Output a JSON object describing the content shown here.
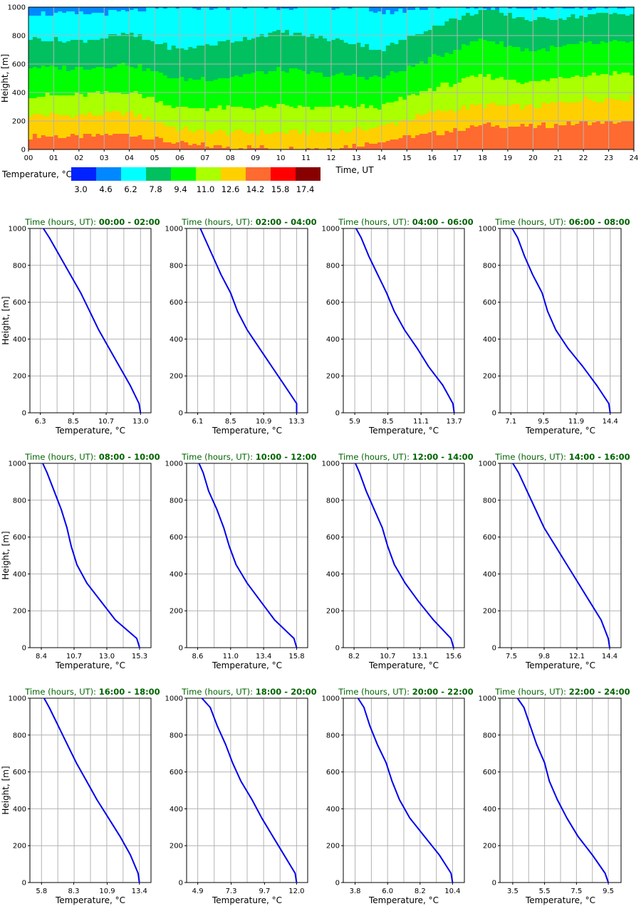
{
  "chart_data": [
    {
      "type": "heatmap",
      "xlabel": "Time, UT",
      "ylabel": "Height, [m]",
      "x_ticks": [
        "00",
        "01",
        "02",
        "03",
        "04",
        "05",
        "06",
        "07",
        "08",
        "09",
        "10",
        "11",
        "12",
        "13",
        "14",
        "15",
        "16",
        "17",
        "18",
        "19",
        "20",
        "21",
        "22",
        "23",
        "24"
      ],
      "y_ticks": [
        "0",
        "200",
        "400",
        "600",
        "800",
        "1000"
      ],
      "xlim": [
        0,
        24
      ],
      "ylim": [
        0,
        1000
      ],
      "grid": true,
      "legend": {
        "title": "Temperature, °C",
        "placement": "bottom-left",
        "values": [
          "3.0",
          "4.6",
          "6.2",
          "7.8",
          "9.4",
          "11.0",
          "12.6",
          "14.2",
          "15.8",
          "17.4"
        ],
        "colors": [
          "#0022ff",
          "#0088ff",
          "#00ffff",
          "#00c060",
          "#00ff00",
          "#aaff00",
          "#ffd000",
          "#ff6a30",
          "#ff0000",
          "#880000"
        ]
      },
      "band_edges": [
        {
          "time": 0,
          "edges": [
            95,
            245,
            380,
            580,
            780,
            960
          ]
        },
        {
          "time": 2,
          "edges": [
            90,
            240,
            380,
            570,
            760,
            950
          ]
        },
        {
          "time": 4,
          "edges": [
            110,
            260,
            410,
            600,
            810,
            970
          ]
        },
        {
          "time": 6,
          "edges": [
            40,
            140,
            290,
            490,
            700,
            1000
          ]
        },
        {
          "time": 8,
          "edges": [
            15,
            120,
            290,
            510,
            760,
            1000
          ]
        },
        {
          "time": 10,
          "edges": [
            10,
            120,
            300,
            560,
            830,
            1000
          ]
        },
        {
          "time": 12,
          "edges": [
            10,
            120,
            290,
            520,
            770,
            1000
          ]
        },
        {
          "time": 13,
          "edges": [
            30,
            140,
            300,
            520,
            750,
            1000
          ]
        },
        {
          "time": 14,
          "edges": [
            60,
            160,
            300,
            500,
            700,
            960
          ]
        },
        {
          "time": 16,
          "edges": [
            110,
            260,
            430,
            640,
            860,
            1000
          ]
        },
        {
          "time": 18,
          "edges": [
            170,
            310,
            520,
            780,
            980,
            1000
          ]
        },
        {
          "time": 20,
          "edges": [
            160,
            300,
            470,
            690,
            910,
            1000
          ]
        },
        {
          "time": 22,
          "edges": [
            190,
            350,
            530,
            740,
            940,
            1000
          ]
        },
        {
          "time": 24,
          "edges": [
            190,
            360,
            540,
            760,
            960,
            1000
          ]
        }
      ],
      "band_order_warm_to_cold": [
        7,
        6,
        5,
        4,
        3,
        2,
        1
      ]
    },
    {
      "type": "line",
      "title_prefix": "Time (hours, UT): ",
      "title_range": "00:00 - 02:00",
      "xlabel": "Temperature, °C",
      "ylabel": "Height, [m]",
      "x_ticks": [
        "6.3",
        "8.5",
        "10.7",
        "13.0"
      ],
      "xlim": [
        5.6,
        13.7
      ],
      "ylim": [
        0,
        1000
      ],
      "grid": true,
      "series": [
        {
          "values": [
            [
              13.0,
              0
            ],
            [
              12.9,
              50
            ],
            [
              12.3,
              150
            ],
            [
              11.6,
              250
            ],
            [
              10.9,
              350
            ],
            [
              10.2,
              450
            ],
            [
              9.6,
              550
            ],
            [
              9.0,
              650
            ],
            [
              8.3,
              750
            ],
            [
              7.6,
              850
            ],
            [
              6.9,
              950
            ],
            [
              6.5,
              1000
            ]
          ]
        }
      ]
    },
    {
      "type": "line",
      "title_prefix": "Time (hours, UT): ",
      "title_range": "02:00 - 04:00",
      "xlabel": "Temperature, °C",
      "ylabel": "",
      "x_ticks": [
        "6.1",
        "8.5",
        "10.9",
        "13.3"
      ],
      "xlim": [
        5.3,
        14.1
      ],
      "ylim": [
        0,
        1000
      ],
      "grid": true,
      "series": [
        {
          "values": [
            [
              13.3,
              0
            ],
            [
              13.3,
              50
            ],
            [
              12.4,
              150
            ],
            [
              11.5,
              250
            ],
            [
              10.6,
              350
            ],
            [
              9.7,
              450
            ],
            [
              9.0,
              550
            ],
            [
              8.5,
              650
            ],
            [
              7.8,
              750
            ],
            [
              7.2,
              850
            ],
            [
              6.6,
              950
            ],
            [
              6.3,
              1000
            ]
          ]
        }
      ]
    },
    {
      "type": "line",
      "title_prefix": "Time (hours, UT): ",
      "title_range": "04:00 - 06:00",
      "xlabel": "Temperature, °C",
      "ylabel": "",
      "x_ticks": [
        "5.9",
        "8.5",
        "11.1",
        "13.7"
      ],
      "xlim": [
        5.0,
        14.5
      ],
      "ylim": [
        0,
        1000
      ],
      "grid": true,
      "series": [
        {
          "values": [
            [
              13.7,
              0
            ],
            [
              13.6,
              50
            ],
            [
              12.8,
              150
            ],
            [
              11.7,
              250
            ],
            [
              10.8,
              350
            ],
            [
              9.8,
              450
            ],
            [
              9.0,
              550
            ],
            [
              8.4,
              650
            ],
            [
              7.7,
              750
            ],
            [
              7.0,
              850
            ],
            [
              6.4,
              950
            ],
            [
              6.0,
              1000
            ]
          ]
        }
      ]
    },
    {
      "type": "line",
      "title_prefix": "Time (hours, UT): ",
      "title_range": "06:00 - 08:00",
      "xlabel": "Temperature, °C",
      "ylabel": "",
      "x_ticks": [
        "7.1",
        "9.5",
        "11.9",
        "14.4"
      ],
      "xlim": [
        6.3,
        15.2
      ],
      "ylim": [
        0,
        1000
      ],
      "grid": true,
      "series": [
        {
          "values": [
            [
              14.4,
              0
            ],
            [
              14.3,
              50
            ],
            [
              13.4,
              150
            ],
            [
              12.4,
              250
            ],
            [
              11.3,
              350
            ],
            [
              10.4,
              450
            ],
            [
              9.8,
              550
            ],
            [
              9.4,
              650
            ],
            [
              8.7,
              750
            ],
            [
              8.1,
              850
            ],
            [
              7.6,
              950
            ],
            [
              7.2,
              1000
            ]
          ]
        }
      ]
    },
    {
      "type": "line",
      "title_prefix": "Time (hours, UT): ",
      "title_range": "08:00 - 10:00",
      "xlabel": "Temperature, °C",
      "ylabel": "Height, [m]",
      "x_ticks": [
        "8.4",
        "10.7",
        "13.0",
        "15.3"
      ],
      "xlim": [
        7.6,
        16.1
      ],
      "ylim": [
        0,
        1000
      ],
      "grid": true,
      "series": [
        {
          "values": [
            [
              15.3,
              0
            ],
            [
              15.1,
              50
            ],
            [
              13.6,
              150
            ],
            [
              12.6,
              250
            ],
            [
              11.6,
              350
            ],
            [
              10.9,
              450
            ],
            [
              10.5,
              550
            ],
            [
              10.2,
              650
            ],
            [
              9.8,
              750
            ],
            [
              9.3,
              850
            ],
            [
              8.8,
              950
            ],
            [
              8.5,
              1000
            ]
          ]
        }
      ]
    },
    {
      "type": "line",
      "title_prefix": "Time (hours, UT): ",
      "title_range": "10:00 - 12:00",
      "xlabel": "Temperature, °C",
      "ylabel": "",
      "x_ticks": [
        "8.6",
        "11.0",
        "13.4",
        "15.8"
      ],
      "xlim": [
        7.8,
        16.6
      ],
      "ylim": [
        0,
        1000
      ],
      "grid": true,
      "series": [
        {
          "values": [
            [
              15.8,
              0
            ],
            [
              15.6,
              50
            ],
            [
              14.2,
              150
            ],
            [
              13.2,
              250
            ],
            [
              12.2,
              350
            ],
            [
              11.4,
              450
            ],
            [
              10.9,
              550
            ],
            [
              10.5,
              650
            ],
            [
              10.0,
              750
            ],
            [
              9.4,
              850
            ],
            [
              9.0,
              950
            ],
            [
              8.7,
              1000
            ]
          ]
        }
      ]
    },
    {
      "type": "line",
      "title_prefix": "Time (hours, UT): ",
      "title_range": "12:00 - 14:00",
      "xlabel": "Temperature, °C",
      "ylabel": "",
      "x_ticks": [
        "8.2",
        "10.7",
        "13.1",
        "15.6"
      ],
      "xlim": [
        7.4,
        16.4
      ],
      "ylim": [
        0,
        1000
      ],
      "grid": true,
      "series": [
        {
          "values": [
            [
              15.6,
              0
            ],
            [
              15.4,
              50
            ],
            [
              14.1,
              150
            ],
            [
              13.0,
              250
            ],
            [
              12.0,
              350
            ],
            [
              11.2,
              450
            ],
            [
              10.7,
              550
            ],
            [
              10.3,
              650
            ],
            [
              9.7,
              750
            ],
            [
              9.1,
              850
            ],
            [
              8.6,
              950
            ],
            [
              8.3,
              1000
            ]
          ]
        }
      ]
    },
    {
      "type": "line",
      "title_prefix": "Time (hours, UT): ",
      "title_range": "14:00 - 16:00",
      "xlabel": "Temperature, °C",
      "ylabel": "",
      "x_ticks": [
        "7.5",
        "9.8",
        "12.1",
        "14.4"
      ],
      "xlim": [
        6.7,
        15.2
      ],
      "ylim": [
        0,
        1000
      ],
      "grid": true,
      "series": [
        {
          "values": [
            [
              14.4,
              0
            ],
            [
              14.3,
              50
            ],
            [
              13.8,
              150
            ],
            [
              13.0,
              250
            ],
            [
              12.2,
              350
            ],
            [
              11.4,
              450
            ],
            [
              10.6,
              550
            ],
            [
              9.8,
              650
            ],
            [
              9.2,
              750
            ],
            [
              8.6,
              850
            ],
            [
              8.0,
              950
            ],
            [
              7.6,
              1000
            ]
          ]
        }
      ]
    },
    {
      "type": "line",
      "title_prefix": "Time (hours, UT): ",
      "title_range": "16:00 - 18:00",
      "xlabel": "Temperature, °C",
      "ylabel": "Height, [m]",
      "x_ticks": [
        "5.8",
        "8.3",
        "10.9",
        "13.4"
      ],
      "xlim": [
        4.9,
        14.3
      ],
      "ylim": [
        0,
        1000
      ],
      "grid": true,
      "series": [
        {
          "values": [
            [
              13.4,
              0
            ],
            [
              13.3,
              50
            ],
            [
              12.7,
              150
            ],
            [
              11.9,
              250
            ],
            [
              11.0,
              350
            ],
            [
              10.1,
              450
            ],
            [
              9.3,
              550
            ],
            [
              8.5,
              650
            ],
            [
              7.8,
              750
            ],
            [
              7.1,
              850
            ],
            [
              6.4,
              950
            ],
            [
              6.0,
              1000
            ]
          ]
        }
      ]
    },
    {
      "type": "line",
      "title_prefix": "Time (hours, UT): ",
      "title_range": "18:00 - 20:00",
      "xlabel": "Temperature, °C",
      "ylabel": "",
      "x_ticks": [
        "4.9",
        "7.3",
        "9.7",
        "12.0"
      ],
      "xlim": [
        4.1,
        12.8
      ],
      "ylim": [
        0,
        1000
      ],
      "grid": true,
      "series": [
        {
          "values": [
            [
              12.0,
              0
            ],
            [
              11.9,
              50
            ],
            [
              11.1,
              150
            ],
            [
              10.3,
              250
            ],
            [
              9.5,
              350
            ],
            [
              8.8,
              450
            ],
            [
              8.0,
              550
            ],
            [
              7.4,
              650
            ],
            [
              6.9,
              750
            ],
            [
              6.3,
              850
            ],
            [
              5.8,
              950
            ],
            [
              5.2,
              1000
            ]
          ]
        }
      ]
    },
    {
      "type": "line",
      "title_prefix": "Time (hours, UT): ",
      "title_range": "20:00 - 22:00",
      "xlabel": "Temperature, °C",
      "ylabel": "",
      "x_ticks": [
        "3.8",
        "6.0",
        "8.2",
        "10.4"
      ],
      "xlim": [
        3.0,
        11.2
      ],
      "ylim": [
        0,
        1000
      ],
      "grid": true,
      "series": [
        {
          "values": [
            [
              10.4,
              0
            ],
            [
              10.3,
              50
            ],
            [
              9.5,
              150
            ],
            [
              8.5,
              250
            ],
            [
              7.5,
              350
            ],
            [
              6.8,
              450
            ],
            [
              6.3,
              550
            ],
            [
              5.9,
              650
            ],
            [
              5.3,
              750
            ],
            [
              4.8,
              850
            ],
            [
              4.4,
              950
            ],
            [
              4.0,
              1000
            ]
          ]
        }
      ]
    },
    {
      "type": "line",
      "title_prefix": "Time (hours, UT): ",
      "title_range": "22:00 - 24:00",
      "xlabel": "Temperature, °C",
      "ylabel": "",
      "x_ticks": [
        "3.5",
        "5.5",
        "7.5",
        "9.5"
      ],
      "xlim": [
        2.7,
        10.3
      ],
      "ylim": [
        0,
        1000
      ],
      "grid": true,
      "series": [
        {
          "values": [
            [
              9.5,
              0
            ],
            [
              9.3,
              50
            ],
            [
              8.5,
              150
            ],
            [
              7.6,
              250
            ],
            [
              6.9,
              350
            ],
            [
              6.3,
              450
            ],
            [
              5.8,
              550
            ],
            [
              5.5,
              650
            ],
            [
              5.0,
              750
            ],
            [
              4.6,
              850
            ],
            [
              4.2,
              950
            ],
            [
              3.8,
              1000
            ]
          ]
        }
      ]
    }
  ]
}
